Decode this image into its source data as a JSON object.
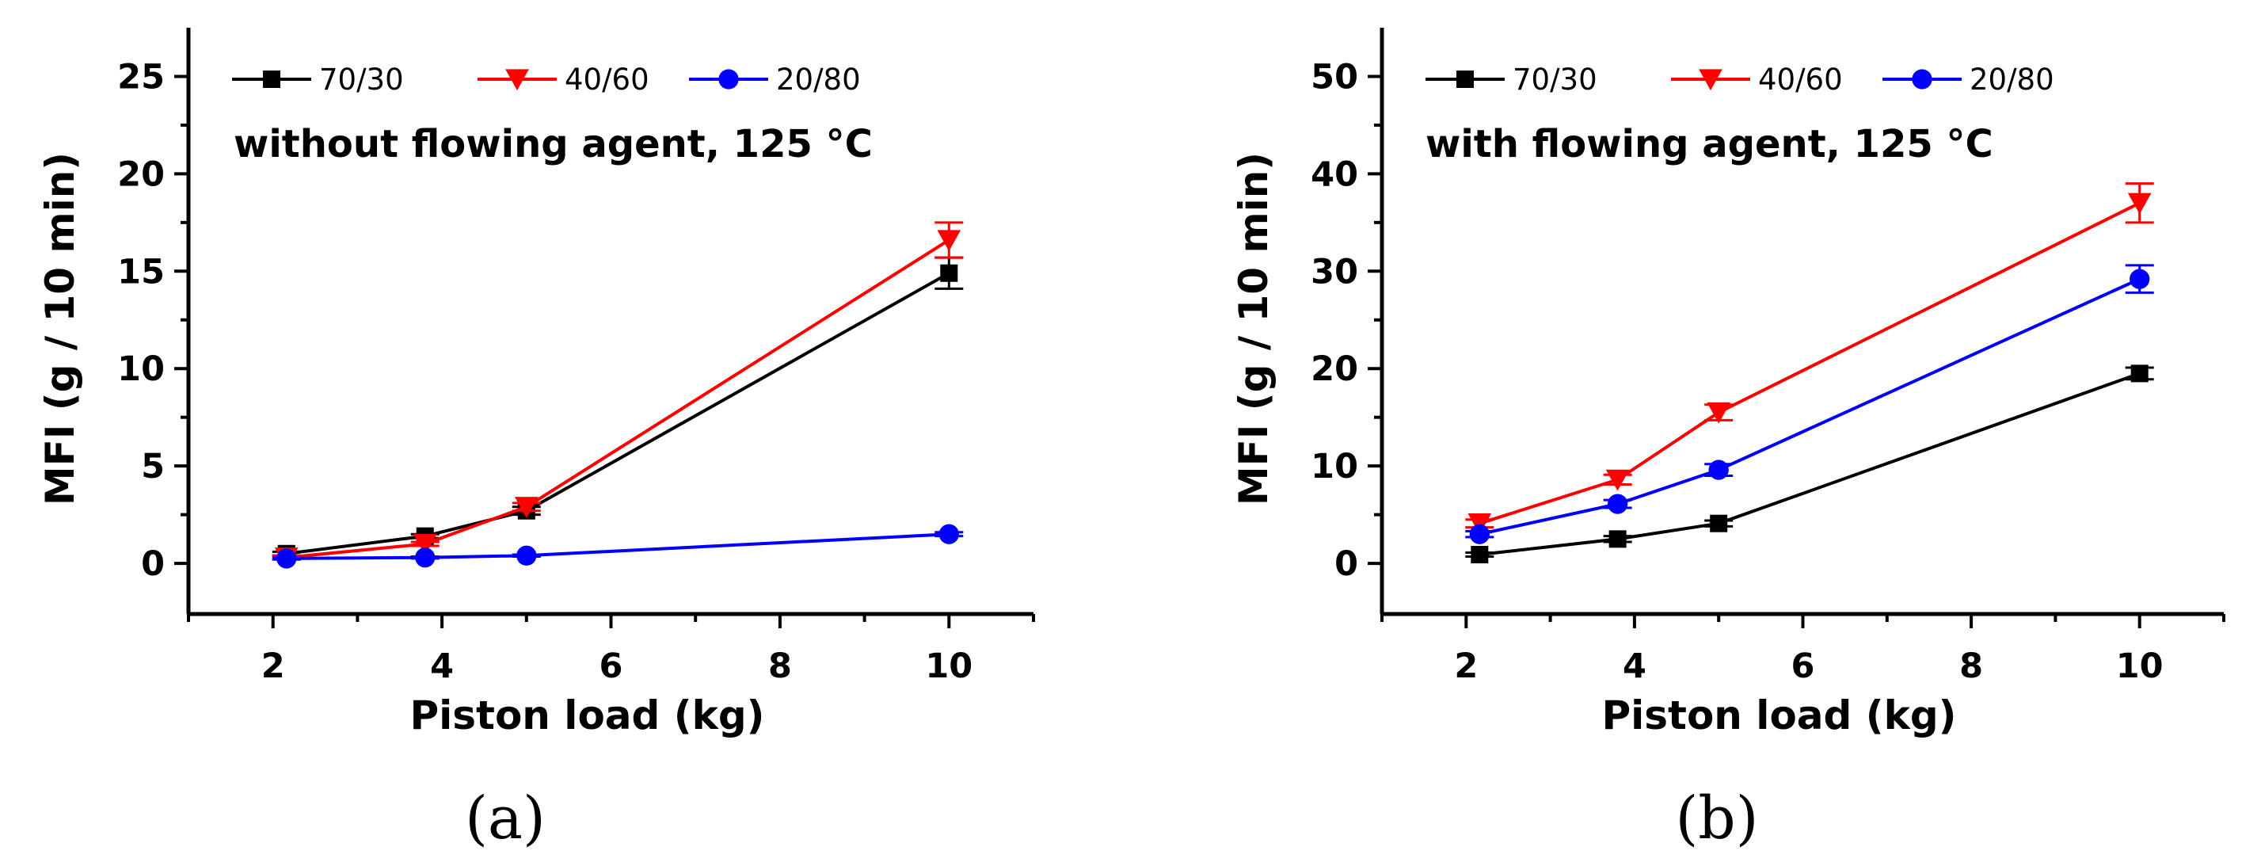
{
  "colors": {
    "axis": "#000000"
  },
  "chart_data": [
    {
      "type": "line",
      "caption": "(a)",
      "annotation": "without flowing agent, 125 °C",
      "xlabel": "Piston load (kg)",
      "ylabel": "MFI (g / 10 min)",
      "xlim": [
        1,
        11
      ],
      "ylim": [
        -2.6,
        27.5
      ],
      "xticks": [
        2,
        4,
        6,
        8,
        10
      ],
      "xtick_labels": [
        "2",
        "4",
        "6",
        "8",
        "10"
      ],
      "yticks": [
        0,
        5,
        10,
        15,
        20,
        25
      ],
      "ytick_labels": [
        "0",
        "5",
        "10",
        "15",
        "20",
        "25"
      ],
      "x": [
        2.16,
        3.8,
        5,
        10
      ],
      "series": [
        {
          "name": "70/30",
          "color": "#000000",
          "marker": "square",
          "values": [
            0.5,
            1.4,
            2.7,
            14.9
          ],
          "errors": [
            0.1,
            0.1,
            0.2,
            0.8
          ]
        },
        {
          "name": "40/60",
          "color": "#ff0000",
          "marker": "triangle-down",
          "values": [
            0.3,
            1.0,
            2.9,
            16.6
          ],
          "errors": [
            0.1,
            0.1,
            0.2,
            0.9
          ]
        },
        {
          "name": "20/80",
          "color": "#0000ff",
          "marker": "circle",
          "values": [
            0.25,
            0.3,
            0.4,
            1.5
          ],
          "errors": [
            0.05,
            0.05,
            0.05,
            0.1
          ]
        }
      ]
    },
    {
      "type": "line",
      "caption": "(b)",
      "annotation": "with flowing agent, 125 °C",
      "xlabel": "Piston load (kg)",
      "ylabel": "MFI (g / 10 min)",
      "xlim": [
        1,
        11
      ],
      "ylim": [
        -5.2,
        55
      ],
      "xticks": [
        2,
        4,
        6,
        8,
        10
      ],
      "xtick_labels": [
        "2",
        "4",
        "6",
        "8",
        "10"
      ],
      "yticks": [
        0,
        10,
        20,
        30,
        40,
        50
      ],
      "ytick_labels": [
        "0",
        "10",
        "20",
        "30",
        "40",
        "50"
      ],
      "x": [
        2.16,
        3.8,
        5,
        10
      ],
      "series": [
        {
          "name": "70/30",
          "color": "#000000",
          "marker": "square",
          "values": [
            0.9,
            2.5,
            4.1,
            19.5
          ],
          "errors": [
            0.2,
            0.3,
            0.3,
            0.6
          ]
        },
        {
          "name": "40/60",
          "color": "#ff0000",
          "marker": "triangle-down",
          "values": [
            4.1,
            8.6,
            15.5,
            37.0
          ],
          "errors": [
            0.4,
            0.5,
            0.8,
            2.0
          ]
        },
        {
          "name": "20/80",
          "color": "#0000ff",
          "marker": "circle",
          "values": [
            3.0,
            6.1,
            9.6,
            29.2
          ],
          "errors": [
            0.3,
            0.4,
            0.6,
            1.4
          ]
        }
      ]
    }
  ]
}
